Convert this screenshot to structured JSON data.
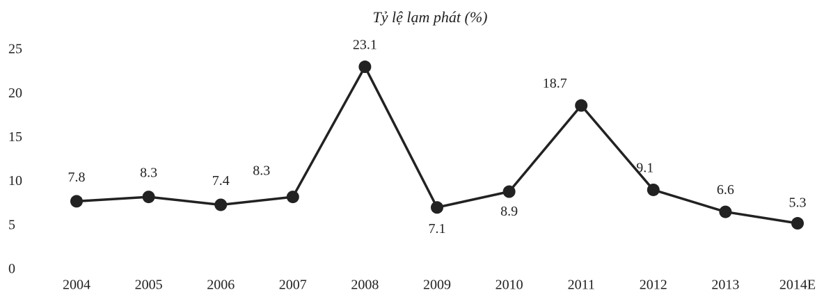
{
  "chart_data": {
    "type": "line",
    "title": "Tỷ lệ lạm phát (%)",
    "categories": [
      "2004",
      "2005",
      "2006",
      "2007",
      "2008",
      "2009",
      "2010",
      "2011",
      "2012",
      "2013",
      "2014E"
    ],
    "series": [
      {
        "name": "Tỷ lệ lạm phát (%)",
        "color": "#222222",
        "values": [
          7.8,
          8.3,
          7.4,
          8.3,
          23.1,
          7.1,
          8.9,
          18.7,
          9.1,
          6.6,
          5.3
        ]
      }
    ],
    "ylim": [
      0,
      25
    ],
    "yticks": [
      0,
      5,
      10,
      15,
      20,
      25
    ],
    "grid": false
  }
}
